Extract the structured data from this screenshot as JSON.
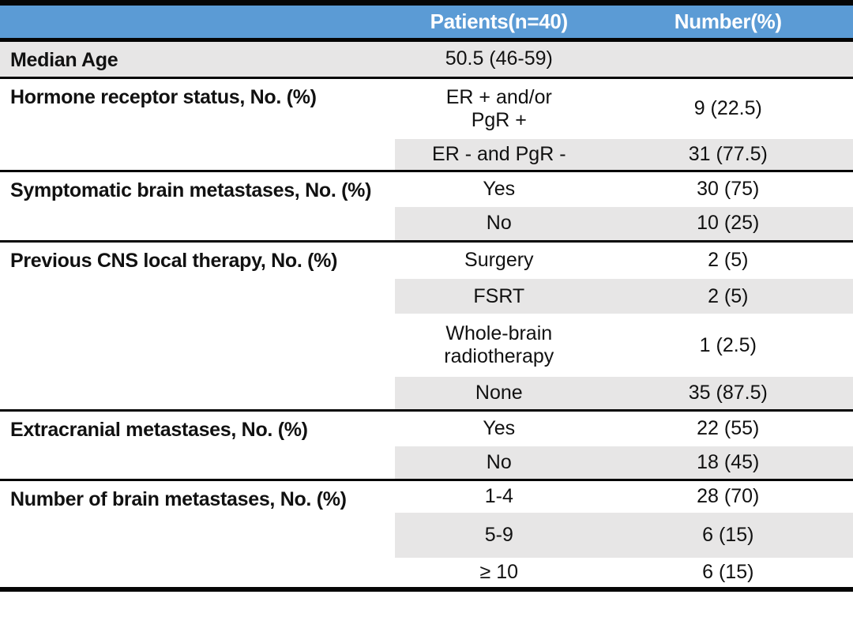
{
  "table": {
    "header": {
      "col1": "",
      "col2": "Patients(n=40)",
      "col3": "Number(%)"
    },
    "groups": [
      {
        "label": "Median Age",
        "rows": [
          {
            "value": "50.5 (46-59)",
            "number": ""
          }
        ]
      },
      {
        "label": "Hormone receptor status, No. (%)",
        "rows": [
          {
            "value": "ER + and/or\nPgR +",
            "number": "9 (22.5)"
          },
          {
            "value": "ER - and PgR -",
            "number": "31 (77.5)"
          }
        ]
      },
      {
        "label": "Symptomatic brain metastases, No. (%)",
        "rows": [
          {
            "value": "Yes",
            "number": "30 (75)"
          },
          {
            "value": "No",
            "number": "10 (25)"
          }
        ]
      },
      {
        "label": "Previous CNS local therapy, No. (%)",
        "rows": [
          {
            "value": "Surgery",
            "number": "2 (5)"
          },
          {
            "value": "FSRT",
            "number": "2 (5)"
          },
          {
            "value": "Whole-brain\nradiotherapy",
            "number": "1 (2.5)"
          },
          {
            "value": "None",
            "number": "35 (87.5)"
          }
        ]
      },
      {
        "label": "Extracranial metastases, No. (%)",
        "rows": [
          {
            "value": "Yes",
            "number": "22 (55)"
          },
          {
            "value": "No",
            "number": "18 (45)"
          }
        ]
      },
      {
        "label": "Number of brain metastases, No. (%)",
        "rows": [
          {
            "value": "1-4",
            "number": "28 (70)"
          },
          {
            "value": "5-9",
            "number": "6 (15)"
          },
          {
            "value": "≥ 10",
            "number": "6 (15)"
          }
        ]
      }
    ],
    "colors": {
      "header_bg": "#5B9BD5",
      "header_text": "#FFFFFF",
      "row_band_gray": "#E7E6E6",
      "border_black": "#050505",
      "text": "#111111"
    }
  },
  "chart_data": {
    "type": "table",
    "title": "",
    "columns": [
      "",
      "Patients(n=40)",
      "Number(%)"
    ],
    "rows": [
      [
        "Median Age",
        "50.5 (46-59)",
        ""
      ],
      [
        "Hormone receptor status, No. (%)",
        "ER + and/or PgR +",
        "9 (22.5)"
      ],
      [
        "Hormone receptor status, No. (%)",
        "ER - and PgR -",
        "31 (77.5)"
      ],
      [
        "Symptomatic brain metastases, No. (%)",
        "Yes",
        "30 (75)"
      ],
      [
        "Symptomatic brain metastases, No. (%)",
        "No",
        "10 (25)"
      ],
      [
        "Previous CNS local therapy, No. (%)",
        "Surgery",
        "2 (5)"
      ],
      [
        "Previous CNS local therapy, No. (%)",
        "FSRT",
        "2 (5)"
      ],
      [
        "Previous CNS local therapy, No. (%)",
        "Whole-brain radiotherapy",
        "1 (2.5)"
      ],
      [
        "Previous CNS local therapy, No. (%)",
        "None",
        "35 (87.5)"
      ],
      [
        "Extracranial metastases, No. (%)",
        "Yes",
        "22 (55)"
      ],
      [
        "Extracranial metastases, No. (%)",
        "No",
        "18 (45)"
      ],
      [
        "Number of brain metastases, No. (%)",
        "1-4",
        "28 (70)"
      ],
      [
        "Number of brain metastases, No. (%)",
        "5-9",
        "6 (15)"
      ],
      [
        "Number of brain metastases, No. (%)",
        "≥ 10",
        "6 (15)"
      ]
    ],
    "layout_hints": {
      "banding": "alternating light-gray starting at first body row",
      "category_cells": "rowspan, left-aligned bold, white background",
      "group_separators": "thick black horizontal rules",
      "legend": "none",
      "grid": "none"
    }
  }
}
